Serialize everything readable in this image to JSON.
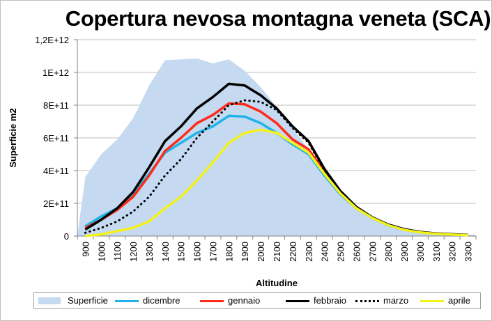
{
  "chart_data": {
    "type": "line",
    "title": "Copertura nevosa montagna veneta (SCA)",
    "xlabel": "Altitudine",
    "ylabel": "Superficie m2",
    "ylim": [
      0,
      1200000000000
    ],
    "yticks": [
      0,
      200000000000,
      400000000000,
      600000000000,
      800000000000,
      1000000000000,
      1200000000000
    ],
    "ytick_labels": [
      "0",
      "2E+11",
      "4E+11",
      "6E+11",
      "8E+11",
      "1E+12",
      "1,2E+12"
    ],
    "grid": true,
    "legend_position": "bottom",
    "categories": [
      "900",
      "1000",
      "1100",
      "1200",
      "1300",
      "1400",
      "1500",
      "1600",
      "1700",
      "1800",
      "1900",
      "2000",
      "2100",
      "2200",
      "2300",
      "2400",
      "2500",
      "2600",
      "2700",
      "2800",
      "2900",
      "3000",
      "3100",
      "3200",
      "3300"
    ],
    "series": [
      {
        "name": "Superficie",
        "style": "area",
        "color": "#c5d9f1",
        "values": [
          360000000000,
          500000000000,
          590000000000,
          720000000000,
          920000000000,
          1075000000000,
          1080000000000,
          1085000000000,
          1055000000000,
          1080000000000,
          1010000000000,
          910000000000,
          790000000000,
          660000000000,
          530000000000,
          390000000000,
          270000000000,
          175000000000,
          115000000000,
          70000000000,
          45000000000,
          28000000000,
          18000000000,
          12000000000,
          8000000000
        ]
      },
      {
        "name": "dicembre",
        "style": "solid",
        "color": "#1fb4e8",
        "values": [
          60000000000,
          120000000000,
          170000000000,
          260000000000,
          380000000000,
          510000000000,
          570000000000,
          630000000000,
          670000000000,
          735000000000,
          730000000000,
          690000000000,
          630000000000,
          560000000000,
          500000000000,
          370000000000,
          255000000000,
          170000000000,
          110000000000,
          65000000000,
          38000000000,
          22000000000,
          14000000000,
          9000000000,
          5000000000
        ]
      },
      {
        "name": "gennaio",
        "style": "solid",
        "color": "#ff2a1a",
        "values": [
          50000000000,
          100000000000,
          160000000000,
          240000000000,
          370000000000,
          520000000000,
          600000000000,
          690000000000,
          740000000000,
          810000000000,
          805000000000,
          760000000000,
          690000000000,
          590000000000,
          530000000000,
          390000000000,
          270000000000,
          175000000000,
          112000000000,
          68000000000,
          40000000000,
          24000000000,
          15000000000,
          10000000000,
          6000000000
        ]
      },
      {
        "name": "febbraio",
        "style": "solid",
        "color": "#000000",
        "values": [
          40000000000,
          100000000000,
          170000000000,
          270000000000,
          420000000000,
          580000000000,
          670000000000,
          780000000000,
          850000000000,
          930000000000,
          920000000000,
          860000000000,
          780000000000,
          670000000000,
          580000000000,
          410000000000,
          275000000000,
          178000000000,
          114000000000,
          70000000000,
          42000000000,
          25000000000,
          16000000000,
          11000000000,
          7000000000
        ]
      },
      {
        "name": "marzo",
        "style": "dotted",
        "color": "#000000",
        "values": [
          20000000000,
          50000000000,
          90000000000,
          150000000000,
          240000000000,
          370000000000,
          470000000000,
          600000000000,
          700000000000,
          800000000000,
          830000000000,
          820000000000,
          770000000000,
          660000000000,
          570000000000,
          400000000000,
          270000000000,
          175000000000,
          112000000000,
          68000000000,
          40000000000,
          24000000000,
          15000000000,
          10000000000,
          6000000000
        ]
      },
      {
        "name": "aprile",
        "style": "solid",
        "color": "#f4f21a",
        "values": [
          0,
          10000000000,
          30000000000,
          50000000000,
          90000000000,
          170000000000,
          240000000000,
          340000000000,
          450000000000,
          570000000000,
          630000000000,
          650000000000,
          630000000000,
          570000000000,
          510000000000,
          380000000000,
          260000000000,
          170000000000,
          110000000000,
          66000000000,
          38000000000,
          22000000000,
          14000000000,
          9000000000,
          5000000000
        ]
      }
    ]
  }
}
